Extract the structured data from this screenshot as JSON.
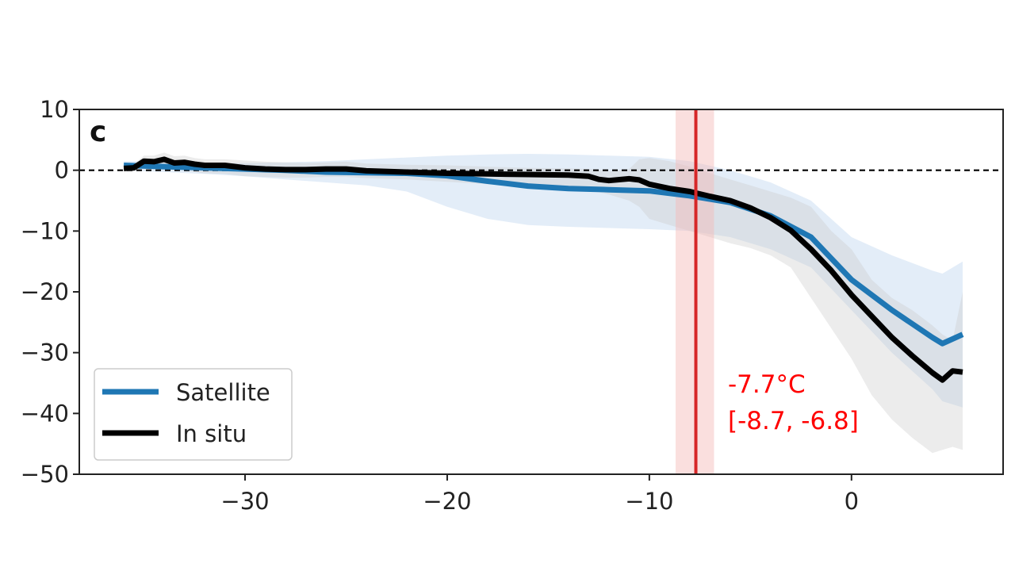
{
  "chart_data": {
    "type": "line",
    "panel_label": "c",
    "title": "",
    "xlabel": "",
    "ylabel": "",
    "xlim": [
      -38.2,
      7.5
    ],
    "ylim": [
      -50,
      10
    ],
    "xticks": [
      -30,
      -20,
      -10,
      0
    ],
    "xtick_labels": [
      "−30",
      "−20",
      "−10",
      "0"
    ],
    "yticks": [
      10,
      0,
      -10,
      -20,
      -30,
      -40,
      -50
    ],
    "ytick_labels": [
      "10",
      "0",
      "−10",
      "−20",
      "−30",
      "−40",
      "−50"
    ],
    "zero_line": {
      "y": 0,
      "style": "dashed",
      "color": "#000000"
    },
    "vertical_line": {
      "x": -7.7,
      "band": [
        -8.7,
        -6.8
      ],
      "color": "#d62728",
      "band_color": "#f4b9b6"
    },
    "annotation": {
      "line1": "-7.7°C",
      "line2": "[-8.7, -6.8]",
      "color": "#ff0000"
    },
    "legend": {
      "position": "lower-left"
    },
    "series": [
      {
        "name": "Satellite",
        "color": "#1f77b4",
        "band_color": "#aecbeb",
        "x": [
          -36,
          -34,
          -32,
          -30,
          -28,
          -26,
          -24,
          -22,
          -20,
          -18,
          -16,
          -14,
          -12,
          -10,
          -8,
          -6,
          -4,
          -2,
          0,
          2,
          4,
          4.5,
          5.5
        ],
        "y": [
          0.8,
          0.6,
          0.4,
          0.2,
          0.0,
          -0.3,
          -0.4,
          -0.5,
          -0.9,
          -1.8,
          -2.6,
          -3.0,
          -3.2,
          -3.4,
          -4.2,
          -5.3,
          -7.5,
          -11,
          -18,
          -23,
          -27.5,
          -28.5,
          -27
        ],
        "lower": [
          0,
          -0.3,
          -0.6,
          -1.0,
          -1.5,
          -2.0,
          -2.5,
          -3.5,
          -6.0,
          -8.0,
          -9.0,
          -9.3,
          -9.5,
          -9.7,
          -10.0,
          -11.0,
          -13.0,
          -16.0,
          -23.0,
          -30.0,
          -36.0,
          -38.0,
          -39.0
        ],
        "upper": [
          1.5,
          1.4,
          1.2,
          1.2,
          1.3,
          1.5,
          1.8,
          2.1,
          2.4,
          2.6,
          2.7,
          2.6,
          2.4,
          2.2,
          1.5,
          0.0,
          -2.0,
          -5.0,
          -11.0,
          -14.0,
          -16.5,
          -17.0,
          -15.0
        ]
      },
      {
        "name": "In situ",
        "color": "#000000",
        "band_color": "#c9c9c9",
        "x": [
          -36,
          -35.5,
          -35,
          -34.5,
          -34,
          -33.5,
          -33,
          -32.5,
          -32,
          -31,
          -30,
          -29,
          -28,
          -27,
          -26,
          -25,
          -24,
          -22,
          -20,
          -18,
          -16,
          -14,
          -13,
          -12.5,
          -12,
          -11,
          -10.5,
          -10,
          -9,
          -8,
          -7,
          -6,
          -5,
          -4,
          -3,
          -2,
          -1,
          0,
          1,
          2,
          3,
          4,
          4.5,
          5,
          5.5
        ],
        "y": [
          0.3,
          0.4,
          1.5,
          1.4,
          1.8,
          1.2,
          1.3,
          1.0,
          0.8,
          0.8,
          0.4,
          0.2,
          0.1,
          0.1,
          0.2,
          0.2,
          -0.1,
          -0.3,
          -0.5,
          -0.6,
          -0.7,
          -0.8,
          -1.0,
          -1.5,
          -1.7,
          -1.4,
          -1.6,
          -2.3,
          -3.0,
          -3.5,
          -4.3,
          -5.0,
          -6.2,
          -7.8,
          -9.9,
          -13.0,
          -16.5,
          -20.5,
          -24.0,
          -27.5,
          -30.5,
          -33.3,
          -34.5,
          -33.0,
          -33.2
        ],
        "lower": [
          -0.2,
          -0.2,
          0.4,
          0.3,
          0.5,
          0.1,
          0.0,
          -0.3,
          -0.5,
          -0.6,
          -1.0,
          -1.1,
          -1.2,
          -1.2,
          -1.1,
          -1.1,
          -1.3,
          -1.5,
          -1.9,
          -2.3,
          -2.6,
          -2.9,
          -3.2,
          -3.6,
          -4.0,
          -5.0,
          -6.0,
          -8.0,
          -9.0,
          -10.0,
          -11.0,
          -12.0,
          -12.8,
          -14.0,
          -16.0,
          -21.0,
          -26.0,
          -31.0,
          -37.0,
          -41.0,
          -44.0,
          -46.5,
          -46.0,
          -45.5,
          -46.0
        ],
        "upper": [
          0.8,
          1.0,
          2.4,
          2.4,
          2.9,
          2.3,
          2.4,
          2.0,
          1.8,
          1.8,
          1.6,
          1.4,
          1.3,
          1.2,
          1.3,
          1.4,
          1.1,
          0.9,
          0.8,
          0.6,
          0.4,
          0.3,
          0.2,
          0.1,
          -0.2,
          0.2,
          1.8,
          2.0,
          1.5,
          0.6,
          -0.5,
          -1.5,
          -2.5,
          -3.5,
          -4.5,
          -6.0,
          -10.0,
          -13.0,
          -18.0,
          -21.0,
          -23.0,
          -25.5,
          -27.0,
          -28.0,
          -20.0
        ]
      }
    ]
  }
}
